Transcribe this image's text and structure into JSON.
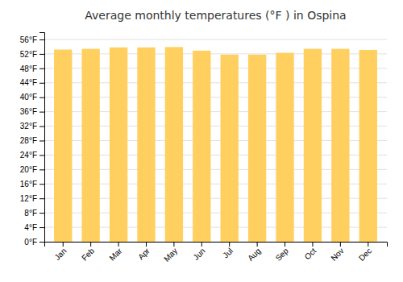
{
  "chart_data": {
    "type": "bar",
    "title": "Average monthly temperatures (°F ) in Ospina",
    "categories": [
      "Jan",
      "Feb",
      "Mar",
      "Apr",
      "May",
      "Jun",
      "Jul",
      "Aug",
      "Sep",
      "Oct",
      "Nov",
      "Dec"
    ],
    "values": [
      53.2,
      53.4,
      53.8,
      53.8,
      53.9,
      52.9,
      51.8,
      51.8,
      52.3,
      53.4,
      53.4,
      53.1
    ],
    "color": "#FFD060",
    "ylim": [
      0,
      58
    ],
    "yticks": [
      {
        "value": 0,
        "label": "0°F"
      },
      {
        "value": 4,
        "label": "4°F"
      },
      {
        "value": 8,
        "label": "8°F"
      },
      {
        "value": 12,
        "label": "12°F"
      },
      {
        "value": 16,
        "label": "16°F"
      },
      {
        "value": 20,
        "label": "20°F"
      },
      {
        "value": 24,
        "label": "24°F"
      },
      {
        "value": 28,
        "label": "28°F"
      },
      {
        "value": 32,
        "label": "32°F"
      },
      {
        "value": 36,
        "label": "36°F"
      },
      {
        "value": 40,
        "label": "40°F"
      },
      {
        "value": 44,
        "label": "44°F"
      },
      {
        "value": 48,
        "label": "48°F"
      },
      {
        "value": 52,
        "label": "52°F"
      },
      {
        "value": 56,
        "label": "56°F"
      }
    ],
    "grid": true
  }
}
